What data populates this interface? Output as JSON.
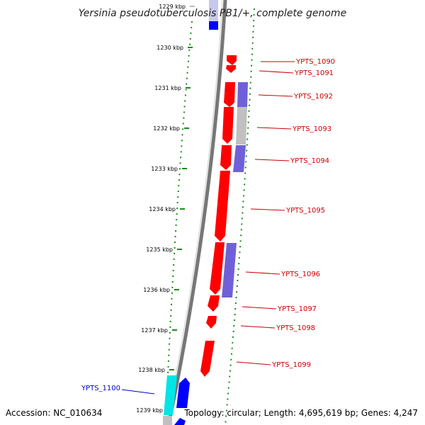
{
  "title": "Yersinia pseudotuberculosis PB1/+, complete genome",
  "accession": "Accession: NC_010634",
  "summary": "Topology: circular; Length: 4,695,619 bp; Genes: 4,247",
  "ticks": [
    "1229 kbp",
    "1230 kbp",
    "1231 kbp",
    "1232 kbp",
    "1233 kbp",
    "1234 kbp",
    "1235 kbp",
    "1236 kbp",
    "1237 kbp",
    "1238 kbp",
    "1239 kbp"
  ],
  "genes_right": [
    {
      "label": "YPTS_1090",
      "color": "#cc0000"
    },
    {
      "label": "YPTS_1091",
      "color": "#cc0000"
    },
    {
      "label": "YPTS_1092",
      "color": "#cc0000"
    },
    {
      "label": "YPTS_1093",
      "color": "#cc0000"
    },
    {
      "label": "YPTS_1094",
      "color": "#cc0000"
    },
    {
      "label": "YPTS_1095",
      "color": "#cc0000"
    },
    {
      "label": "YPTS_1096",
      "color": "#cc0000"
    },
    {
      "label": "YPTS_1097",
      "color": "#cc0000"
    },
    {
      "label": "YPTS_1098",
      "color": "#cc0000"
    },
    {
      "label": "YPTS_1099",
      "color": "#cc0000"
    }
  ],
  "genes_left": [
    {
      "label": "YPTS_1100",
      "color": "#0000cc"
    }
  ],
  "colors": {
    "forward_cds": "#ff0000",
    "reverse_cds": "#0000ff",
    "cyan_feature": "#00e5e5",
    "cog_purple": "#7060d8",
    "cog_gray": "#c0c0c0",
    "tick_green": "#1a8a1a",
    "backbone": "#777777"
  }
}
